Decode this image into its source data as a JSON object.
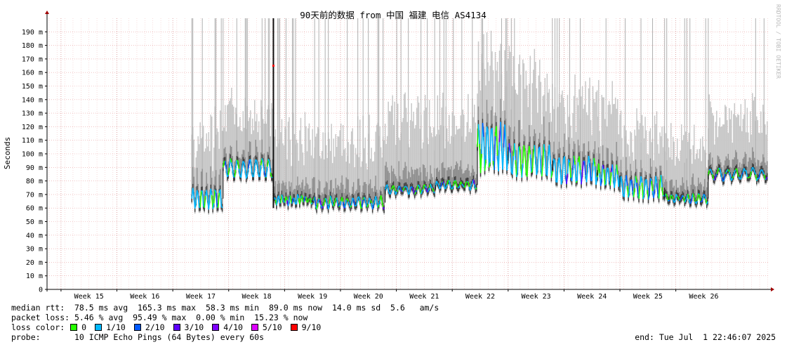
{
  "watermark": "RRDTOOL / TOBI OETIKER",
  "stats": {
    "median_line": "median rtt:  78.5 ms avg  165.3 ms max  58.3 ms min  89.0 ms now  14.0 ms sd  5.6   am/s",
    "loss_line": "packet loss: 5.46 % avg  95.49 % max  0.00 % min  15.23 % now",
    "loss_color_label": "loss color:",
    "probe_line": "probe:       10 ICMP Echo Pings (64 Bytes) every 60s",
    "end_line": "end: Tue Jul  1 22:46:07 2025"
  },
  "loss_legend": [
    {
      "label": "0",
      "color": "#26ff00"
    },
    {
      "label": "1/10",
      "color": "#00b8ff"
    },
    {
      "label": "2/10",
      "color": "#0059ff"
    },
    {
      "label": "3/10",
      "color": "#5e00ff"
    },
    {
      "label": "4/10",
      "color": "#7e00ff"
    },
    {
      "label": "5/10",
      "color": "#dd00ff"
    },
    {
      "label": "9/10",
      "color": "#ff0000"
    }
  ],
  "chart_data": {
    "type": "line",
    "title": "90天前的数据 from 中国 福建 电信 AS4134",
    "ylabel": "Seconds",
    "ylim": [
      0,
      200
    ],
    "y_ticks": [
      {
        "v": 0,
        "label": "0"
      },
      {
        "v": 10,
        "label": "10 m"
      },
      {
        "v": 20,
        "label": "20 m"
      },
      {
        "v": 30,
        "label": "30 m"
      },
      {
        "v": 40,
        "label": "40 m"
      },
      {
        "v": 50,
        "label": "50 m"
      },
      {
        "v": 60,
        "label": "60 m"
      },
      {
        "v": 70,
        "label": "70 m"
      },
      {
        "v": 80,
        "label": "80 m"
      },
      {
        "v": 90,
        "label": "90 m"
      },
      {
        "v": 100,
        "label": "100 m"
      },
      {
        "v": 110,
        "label": "110 m"
      },
      {
        "v": 120,
        "label": "120 m"
      },
      {
        "v": 130,
        "label": "130 m"
      },
      {
        "v": 140,
        "label": "140 m"
      },
      {
        "v": 150,
        "label": "150 m"
      },
      {
        "v": 160,
        "label": "160 m"
      },
      {
        "v": 170,
        "label": "170 m"
      },
      {
        "v": 180,
        "label": "180 m"
      },
      {
        "v": 190,
        "label": "190 m"
      }
    ],
    "x_range_weeks": [
      14.25,
      27.15
    ],
    "x_ticks": [
      {
        "w": 15,
        "label": "Week 15"
      },
      {
        "w": 16,
        "label": "Week 16"
      },
      {
        "w": 17,
        "label": "Week 17"
      },
      {
        "w": 18,
        "label": "Week 18"
      },
      {
        "w": 19,
        "label": "Week 19"
      },
      {
        "w": 20,
        "label": "Week 20"
      },
      {
        "w": 21,
        "label": "Week 21"
      },
      {
        "w": 22,
        "label": "Week 22"
      },
      {
        "w": 23,
        "label": "Week 23"
      },
      {
        "w": 24,
        "label": "Week 24"
      },
      {
        "w": 25,
        "label": "Week 25"
      },
      {
        "w": 26,
        "label": "Week 26"
      }
    ],
    "segments": [
      {
        "start": 16.84,
        "end": 17.4,
        "median": 67,
        "amp": 8,
        "spread": 45,
        "periods": 7
      },
      {
        "start": 17.4,
        "end": 18.3,
        "median": 89,
        "amp": 7,
        "spread": 40,
        "periods": 8
      },
      {
        "start": 18.3,
        "end": 19.0,
        "median": 66,
        "amp": 3,
        "spread": 45,
        "periods": 10
      },
      {
        "start": 19.0,
        "end": 20.3,
        "median": 64,
        "amp": 4,
        "spread": 45,
        "periods": 13
      },
      {
        "start": 20.3,
        "end": 21.2,
        "median": 74,
        "amp": 3,
        "spread": 50,
        "periods": 8
      },
      {
        "start": 21.2,
        "end": 21.95,
        "median": 77,
        "amp": 3,
        "spread": 48,
        "periods": 7
      },
      {
        "start": 21.95,
        "end": 22.5,
        "median": 105,
        "amp": 18,
        "spread": 55,
        "periods": 7
      },
      {
        "start": 22.5,
        "end": 23.3,
        "median": 95,
        "amp": 12,
        "spread": 55,
        "periods": 9
      },
      {
        "start": 23.3,
        "end": 24.1,
        "median": 88,
        "amp": 10,
        "spread": 50,
        "periods": 9
      },
      {
        "start": 24.1,
        "end": 24.5,
        "median": 84,
        "amp": 8,
        "spread": 45,
        "periods": 5
      },
      {
        "start": 24.5,
        "end": 25.3,
        "median": 75,
        "amp": 8,
        "spread": 40,
        "periods": 9
      },
      {
        "start": 25.3,
        "end": 26.08,
        "median": 67,
        "amp": 3,
        "spread": 40,
        "periods": 8
      },
      {
        "start": 26.08,
        "end": 27.15,
        "median": 85,
        "amp": 4,
        "spread": 40,
        "periods": 7
      }
    ]
  }
}
